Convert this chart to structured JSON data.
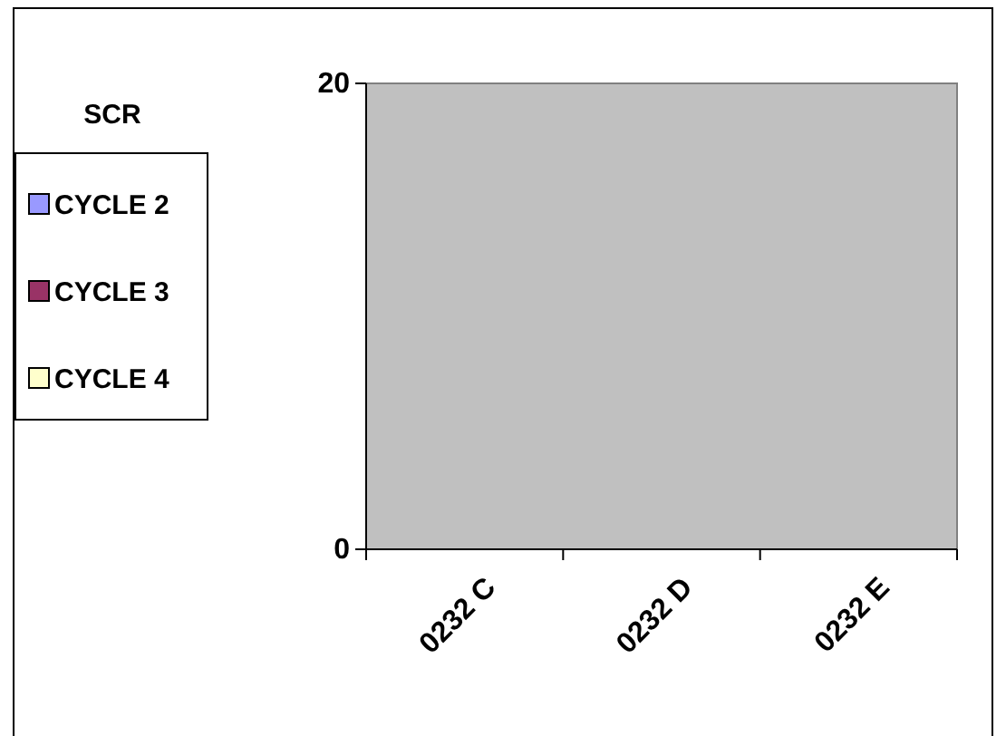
{
  "chart_data": {
    "type": "bar",
    "title": "SCR",
    "categories": [
      "0232 C",
      "0232 D",
      "0232 E"
    ],
    "series": [
      {
        "name": "CYCLE 2",
        "color": "#9999ff",
        "values": [
          0,
          0,
          0
        ]
      },
      {
        "name": "CYCLE 3",
        "color": "#993366",
        "values": [
          0,
          0,
          0
        ]
      },
      {
        "name": "CYCLE 4",
        "color": "#ffffcc",
        "values": [
          0,
          0,
          0
        ]
      }
    ],
    "ylim": [
      0,
      20
    ],
    "yticks": [
      0,
      20
    ],
    "grid": false,
    "legend": "left"
  }
}
